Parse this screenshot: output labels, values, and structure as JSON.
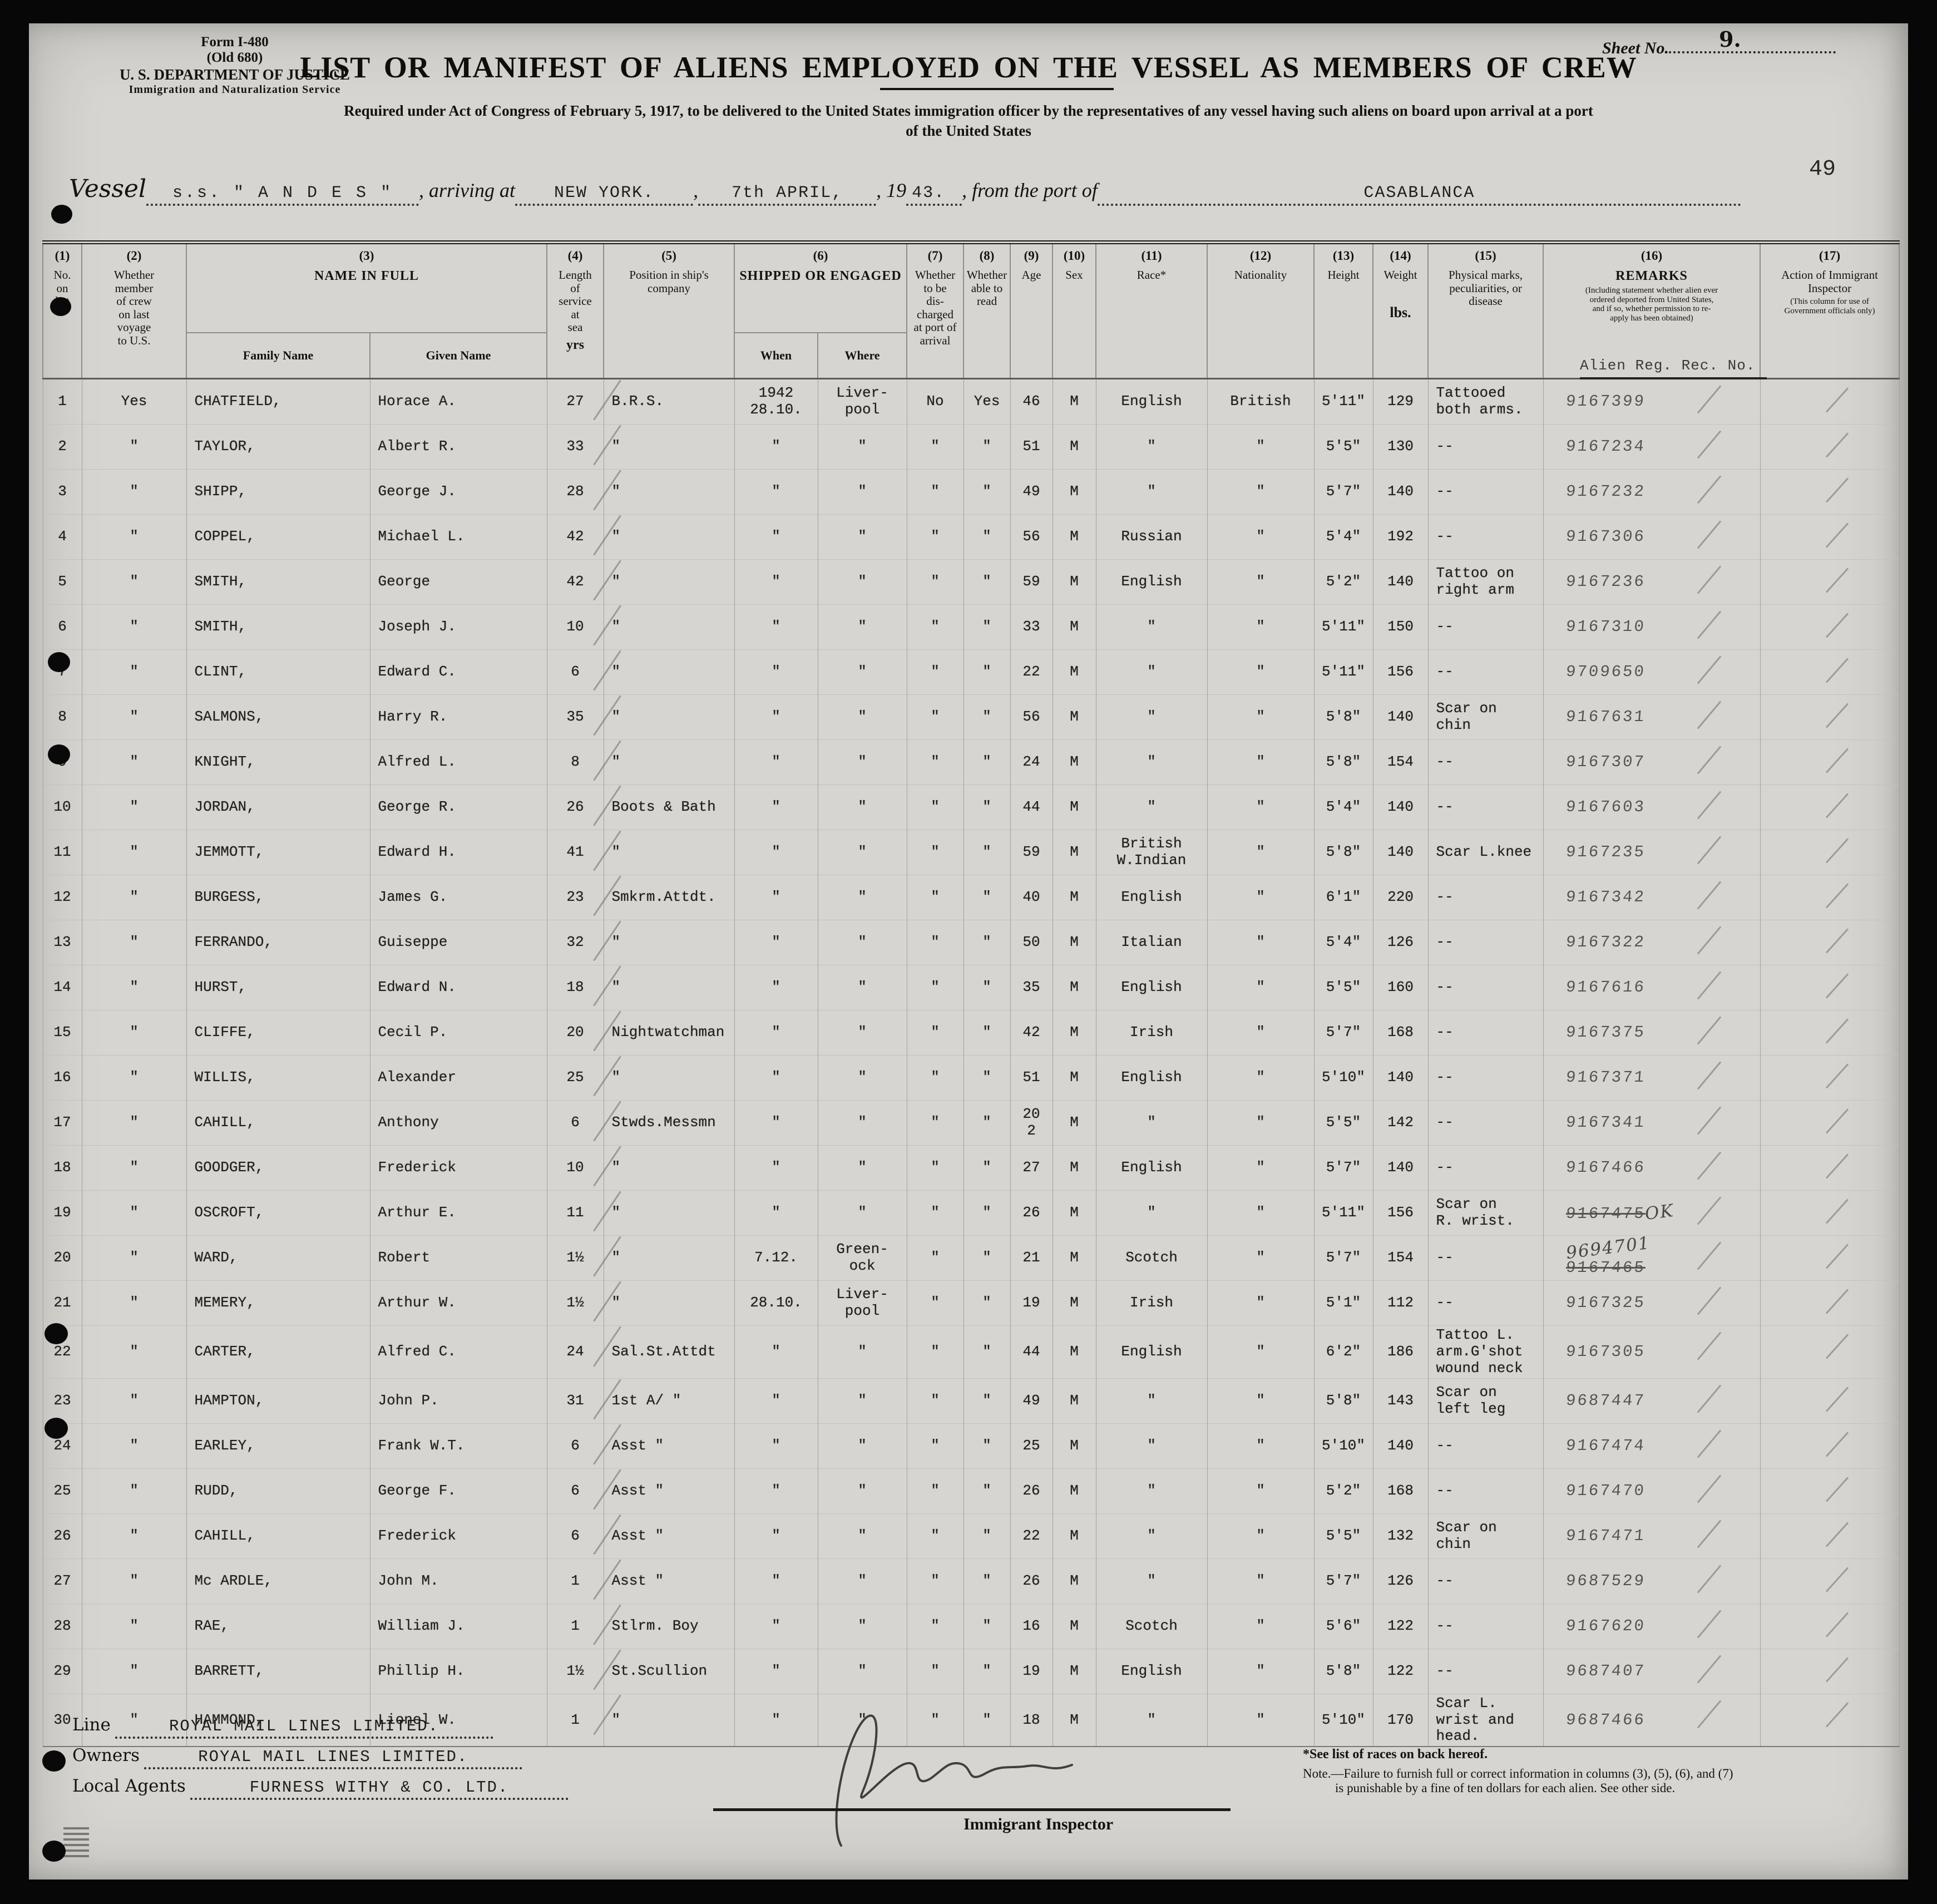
{
  "form": {
    "form_no_1": "Form I-480",
    "form_no_2": "(Old 680)",
    "dept": "U. S. DEPARTMENT OF JUSTICE",
    "service_name": "Immigration and Naturalization Service",
    "sheet_label": "Sheet No.",
    "sheet_value": "9.",
    "title": "LIST OR MANIFEST OF ALIENS EMPLOYED ON THE VESSEL AS MEMBERS OF CREW",
    "subtitle1": "Required under Act of Congress of February 5, 1917, to be delivered to the United States immigration officer by the representatives of any vessel having such aliens on board upon arrival at a port",
    "subtitle2": "of the United States",
    "vessel_label": "Vessel",
    "vessel_value": "s.s. \" A N D E S \"",
    "arriving_label": ", arriving at",
    "arrival_port": "NEW YORK.",
    "comma": ",",
    "arrival_date": "7th APRIL,",
    "year_label": ", 19",
    "year_value": "43.",
    "from_label": ", from the port of",
    "from_port": "CASABLANCA",
    "page_number": "49"
  },
  "table": {
    "headers": {
      "c1_num": "(1)",
      "c1": "No.\non\nlist",
      "c2_num": "(2)",
      "c2": "Whether\nmember\nof crew\non last\nvoyage\nto U.S.",
      "c3_num": "(3)",
      "c3": "NAME IN FULL",
      "c3a": "Family Name",
      "c3b": "Given Name",
      "c4_num": "(4)",
      "c4": "Length\nof\nservice\nat\nsea",
      "c4b": "yrs",
      "c5_num": "(5)",
      "c5": "Position in ship's\ncompany",
      "c6_num": "(6)",
      "c6": "SHIPPED OR ENGAGED",
      "c6a": "When",
      "c6b": "Where",
      "c7_num": "(7)",
      "c7": "Whether\nto be\ndis-\ncharged\nat port of\narrival",
      "c8_num": "(8)",
      "c8": "Whether\nable to\nread",
      "c9_num": "(9)",
      "c9": "Age",
      "c10_num": "(10)",
      "c10": "Sex",
      "c11_num": "(11)",
      "c11": "Race*",
      "c12_num": "(12)",
      "c12": "Nationality",
      "c13_num": "(13)",
      "c13": "Height",
      "c14_num": "(14)",
      "c14": "Weight",
      "c14b": "lbs.",
      "c15_num": "(15)",
      "c15": "Physical marks,\npeculiarities, or\ndisease",
      "c16_num": "(16)",
      "c16": "REMARKS",
      "c16small": "(Including statement whether alien ever\nordered deported from United States,\nand if so, whether permission to re-\napply has been obtained)",
      "c17_num": "(17)",
      "c17": "Action of Immigrant\nInspector",
      "c17small": "(This column for use of\nGovernment officials only)",
      "alien_reg_label": "Alien Reg. Rec. No."
    },
    "rows": [
      {
        "n": "1",
        "crew": "Yes",
        "family": "CHATFIELD,",
        "given": "Horace A.",
        "service": "27",
        "position": "B.R.S.",
        "when": "1942\n28.10.",
        "where": "Liver-\npool",
        "disch": "No",
        "read": "Yes",
        "age": "46",
        "sex": "M",
        "race": "English",
        "nat": "British",
        "height": "5'11\"",
        "weight": "129",
        "marks": "Tattooed\nboth arms.",
        "reg": "9167399",
        "action": ""
      },
      {
        "n": "2",
        "crew": "\"",
        "family": "TAYLOR,",
        "given": "Albert R.",
        "service": "33",
        "position": "\"",
        "when": "\"",
        "where": "\"",
        "disch": "\"",
        "read": "\"",
        "age": "51",
        "sex": "M",
        "race": "\"",
        "nat": "\"",
        "height": "5'5\"",
        "weight": "130",
        "marks": "--",
        "reg": "9167234",
        "action": ""
      },
      {
        "n": "3",
        "crew": "\"",
        "family": "SHIPP,",
        "given": "George J.",
        "service": "28",
        "position": "\"",
        "when": "\"",
        "where": "\"",
        "disch": "\"",
        "read": "\"",
        "age": "49",
        "sex": "M",
        "race": "\"",
        "nat": "\"",
        "height": "5'7\"",
        "weight": "140",
        "marks": "--",
        "reg": "9167232",
        "action": ""
      },
      {
        "n": "4",
        "crew": "\"",
        "family": "COPPEL,",
        "given": "Michael L.",
        "service": "42",
        "position": "\"",
        "when": "\"",
        "where": "\"",
        "disch": "\"",
        "read": "\"",
        "age": "56",
        "sex": "M",
        "race": "Russian",
        "nat": "\"",
        "height": "5'4\"",
        "weight": "192",
        "marks": "--",
        "reg": "9167306",
        "action": ""
      },
      {
        "n": "5",
        "crew": "\"",
        "family": "SMITH,",
        "given": "George",
        "service": "42",
        "position": "\"",
        "when": "\"",
        "where": "\"",
        "disch": "\"",
        "read": "\"",
        "age": "59",
        "sex": "M",
        "race": "English",
        "nat": "\"",
        "height": "5'2\"",
        "weight": "140",
        "marks": "Tattoo on\nright arm",
        "reg": "9167236",
        "action": ""
      },
      {
        "n": "6",
        "crew": "\"",
        "family": "SMITH,",
        "given": "Joseph J.",
        "service": "10",
        "position": "\"",
        "when": "\"",
        "where": "\"",
        "disch": "\"",
        "read": "\"",
        "age": "33",
        "sex": "M",
        "race": "\"",
        "nat": "\"",
        "height": "5'11\"",
        "weight": "150",
        "marks": "--",
        "reg": "9167310",
        "action": ""
      },
      {
        "n": "7",
        "crew": "\"",
        "family": "CLINT,",
        "given": "Edward C.",
        "service": "6",
        "position": "\"",
        "when": "\"",
        "where": "\"",
        "disch": "\"",
        "read": "\"",
        "age": "22",
        "sex": "M",
        "race": "\"",
        "nat": "\"",
        "height": "5'11\"",
        "weight": "156",
        "marks": "--",
        "reg": "9709650",
        "action": ""
      },
      {
        "n": "8",
        "crew": "\"",
        "family": "SALMONS,",
        "given": "Harry R.",
        "service": "35",
        "position": "\"",
        "when": "\"",
        "where": "\"",
        "disch": "\"",
        "read": "\"",
        "age": "56",
        "sex": "M",
        "race": "\"",
        "nat": "\"",
        "height": "5'8\"",
        "weight": "140",
        "marks": "Scar on chin",
        "reg": "9167631",
        "action": ""
      },
      {
        "n": "9",
        "crew": "\"",
        "family": "KNIGHT,",
        "given": "Alfred L.",
        "service": "8",
        "position": "\"",
        "when": "\"",
        "where": "\"",
        "disch": "\"",
        "read": "\"",
        "age": "24",
        "sex": "M",
        "race": "\"",
        "nat": "\"",
        "height": "5'8\"",
        "weight": "154",
        "marks": "--",
        "reg": "9167307",
        "action": ""
      },
      {
        "n": "10",
        "crew": "\"",
        "family": "JORDAN,",
        "given": "George R.",
        "service": "26",
        "position": "Boots & Bath",
        "when": "\"",
        "where": "\"",
        "disch": "\"",
        "read": "\"",
        "age": "44",
        "sex": "M",
        "race": "\"",
        "nat": "\"",
        "height": "5'4\"",
        "weight": "140",
        "marks": "--",
        "reg": "9167603",
        "action": ""
      },
      {
        "n": "11",
        "crew": "\"",
        "family": "JEMMOTT,",
        "given": "Edward H.",
        "service": "41",
        "position": "\"",
        "when": "\"",
        "where": "\"",
        "disch": "\"",
        "read": "\"",
        "age": "59",
        "sex": "M",
        "race": "British\nW.Indian",
        "nat": "\"",
        "height": "5'8\"",
        "weight": "140",
        "marks": "Scar L.knee",
        "reg": "9167235",
        "action": ""
      },
      {
        "n": "12",
        "crew": "\"",
        "family": "BURGESS,",
        "given": "James G.",
        "service": "23",
        "position": "Smkrm.Attdt.",
        "when": "\"",
        "where": "\"",
        "disch": "\"",
        "read": "\"",
        "age": "40",
        "sex": "M",
        "race": "English",
        "nat": "\"",
        "height": "6'1\"",
        "weight": "220",
        "marks": "--",
        "reg": "9167342",
        "action": ""
      },
      {
        "n": "13",
        "crew": "\"",
        "family": "FERRANDO,",
        "given": "Guiseppe",
        "service": "32",
        "position": "\"",
        "when": "\"",
        "where": "\"",
        "disch": "\"",
        "read": "\"",
        "age": "50",
        "sex": "M",
        "race": "Italian",
        "nat": "\"",
        "height": "5'4\"",
        "weight": "126",
        "marks": "--",
        "reg": "9167322",
        "action": ""
      },
      {
        "n": "14",
        "crew": "\"",
        "family": "HURST,",
        "given": "Edward N.",
        "service": "18",
        "position": "\"",
        "when": "\"",
        "where": "\"",
        "disch": "\"",
        "read": "\"",
        "age": "35",
        "sex": "M",
        "race": "English",
        "nat": "\"",
        "height": "5'5\"",
        "weight": "160",
        "marks": "--",
        "reg": "9167616",
        "action": ""
      },
      {
        "n": "15",
        "crew": "\"",
        "family": "CLIFFE,",
        "given": "Cecil P.",
        "service": "20",
        "position": "Nightwatchman",
        "when": "\"",
        "where": "\"",
        "disch": "\"",
        "read": "\"",
        "age": "42",
        "sex": "M",
        "race": "Irish",
        "nat": "\"",
        "height": "5'7\"",
        "weight": "168",
        "marks": "--",
        "reg": "9167375",
        "action": ""
      },
      {
        "n": "16",
        "crew": "\"",
        "family": "WILLIS,",
        "given": "Alexander",
        "service": "25",
        "position": "\"",
        "when": "\"",
        "where": "\"",
        "disch": "\"",
        "read": "\"",
        "age": "51",
        "sex": "M",
        "race": "English",
        "nat": "\"",
        "height": "5'10\"",
        "weight": "140",
        "marks": "--",
        "reg": "9167371",
        "action": ""
      },
      {
        "n": "17",
        "crew": "\"",
        "family": "CAHILL,",
        "given": "Anthony",
        "service": "6",
        "position": "Stwds.Messmn",
        "when": "\"",
        "where": "\"",
        "disch": "\"",
        "read": "\"",
        "age": "20\n2",
        "sex": "M",
        "race": "\"",
        "nat": "\"",
        "height": "5'5\"",
        "weight": "142",
        "marks": "--",
        "reg": "9167341",
        "action": ""
      },
      {
        "n": "18",
        "crew": "\"",
        "family": "GOODGER,",
        "given": "Frederick",
        "service": "10",
        "position": "\"",
        "when": "\"",
        "where": "\"",
        "disch": "\"",
        "read": "\"",
        "age": "27",
        "sex": "M",
        "race": "English",
        "nat": "\"",
        "height": "5'7\"",
        "weight": "140",
        "marks": "--",
        "reg": "9167466",
        "action": ""
      },
      {
        "n": "19",
        "crew": "\"",
        "family": "OSCROFT,",
        "given": "Arthur E.",
        "service": "11",
        "position": "\"",
        "when": "\"",
        "where": "\"",
        "disch": "\"",
        "read": "\"",
        "age": "26",
        "sex": "M",
        "race": "\"",
        "nat": "\"",
        "height": "5'11\"",
        "weight": "156",
        "marks": "Scar on\nR. wrist.",
        "reg": {
          "struck": "9167475",
          "hand": "OK",
          "inline": true
        },
        "action": ""
      },
      {
        "n": "20",
        "crew": "\"",
        "family": "WARD,",
        "given": "Robert",
        "service": "1½",
        "position": "\"",
        "when": "7.12.",
        "where": "Green-\nock",
        "disch": "\"",
        "read": "\"",
        "age": "21",
        "sex": "M",
        "race": "Scotch",
        "nat": "\"",
        "height": "5'7\"",
        "weight": "154",
        "marks": "--",
        "reg": {
          "hand": "9694701",
          "struck": "9167465",
          "inline": false
        },
        "action": ""
      },
      {
        "n": "21",
        "crew": "\"",
        "family": "MEMERY,",
        "given": "Arthur W.",
        "service": "1½",
        "position": "\"",
        "when": "28.10.",
        "where": "Liver-\npool",
        "disch": "\"",
        "read": "\"",
        "age": "19",
        "sex": "M",
        "race": "Irish",
        "nat": "\"",
        "height": "5'1\"",
        "weight": "112",
        "marks": "--",
        "reg": "9167325",
        "action": ""
      },
      {
        "n": "22",
        "crew": "\"",
        "family": "CARTER,",
        "given": "Alfred C.",
        "service": "24",
        "position": "Sal.St.Attdt",
        "when": "\"",
        "where": "\"",
        "disch": "\"",
        "read": "\"",
        "age": "44",
        "sex": "M",
        "race": "English",
        "nat": "\"",
        "height": "6'2\"",
        "weight": "186",
        "marks": "Tattoo L.\narm.G'shot\nwound neck",
        "reg": "9167305",
        "action": ""
      },
      {
        "n": "23",
        "crew": "\"",
        "family": "HAMPTON,",
        "given": "John P.",
        "service": "31",
        "position": "1st A/   \"",
        "when": "\"",
        "where": "\"",
        "disch": "\"",
        "read": "\"",
        "age": "49",
        "sex": "M",
        "race": "\"",
        "nat": "\"",
        "height": "5'8\"",
        "weight": "143",
        "marks": "Scar on\nleft leg",
        "reg": "9687447",
        "action": ""
      },
      {
        "n": "24",
        "crew": "\"",
        "family": "EARLEY,",
        "given": "Frank W.T.",
        "service": "6",
        "position": "Asst    \"",
        "when": "\"",
        "where": "\"",
        "disch": "\"",
        "read": "\"",
        "age": "25",
        "sex": "M",
        "race": "\"",
        "nat": "\"",
        "height": "5'10\"",
        "weight": "140",
        "marks": "--",
        "reg": "9167474",
        "action": ""
      },
      {
        "n": "25",
        "crew": "\"",
        "family": "RUDD,",
        "given": "George F.",
        "service": "6",
        "position": "Asst    \"",
        "when": "\"",
        "where": "\"",
        "disch": "\"",
        "read": "\"",
        "age": "26",
        "sex": "M",
        "race": "\"",
        "nat": "\"",
        "height": "5'2\"",
        "weight": "168",
        "marks": "--",
        "reg": "9167470",
        "action": ""
      },
      {
        "n": "26",
        "crew": "\"",
        "family": "CAHILL,",
        "given": "Frederick",
        "service": "6",
        "position": "Asst    \"",
        "when": "\"",
        "where": "\"",
        "disch": "\"",
        "read": "\"",
        "age": "22",
        "sex": "M",
        "race": "\"",
        "nat": "\"",
        "height": "5'5\"",
        "weight": "132",
        "marks": "Scar on chin",
        "reg": "9167471",
        "action": ""
      },
      {
        "n": "27",
        "crew": "\"",
        "family": "Mc ARDLE,",
        "given": "John M.",
        "service": "1",
        "position": "Asst    \"",
        "when": "\"",
        "where": "\"",
        "disch": "\"",
        "read": "\"",
        "age": "26",
        "sex": "M",
        "race": "\"",
        "nat": "\"",
        "height": "5'7\"",
        "weight": "126",
        "marks": "--",
        "reg": "9687529",
        "action": ""
      },
      {
        "n": "28",
        "crew": "\"",
        "family": "RAE,",
        "given": "William J.",
        "service": "1",
        "position": "Stlrm. Boy",
        "when": "\"",
        "where": "\"",
        "disch": "\"",
        "read": "\"",
        "age": "16",
        "sex": "M",
        "race": "Scotch",
        "nat": "\"",
        "height": "5'6\"",
        "weight": "122",
        "marks": "--",
        "reg": "9167620",
        "action": ""
      },
      {
        "n": "29",
        "crew": "\"",
        "family": "BARRETT,",
        "given": "Phillip H.",
        "service": "1½",
        "position": "St.Scullion",
        "when": "\"",
        "where": "\"",
        "disch": "\"",
        "read": "\"",
        "age": "19",
        "sex": "M",
        "race": "English",
        "nat": "\"",
        "height": "5'8\"",
        "weight": "122",
        "marks": "--",
        "reg": "9687407",
        "action": ""
      },
      {
        "n": "30",
        "crew": "\"",
        "family": "HAMMOND,",
        "given": "Lionel W.",
        "service": "1",
        "position": "\"",
        "when": "\"",
        "where": "\"",
        "disch": "\"",
        "read": "\"",
        "age": "18",
        "sex": "M",
        "race": "\"",
        "nat": "\"",
        "height": "5'10\"",
        "weight": "170",
        "marks": "Scar L.\nwrist and\nhead.",
        "reg": "9687466",
        "action": ""
      }
    ]
  },
  "footer": {
    "line_label": "Line",
    "line_value": "ROYAL MAIL LINES LIMITED.",
    "owners_label": "Owners",
    "owners_value": "ROYAL MAIL LINES LIMITED.",
    "agents_label": "Local Agents",
    "agents_value": "FURNESS WITHY & CO. LTD.",
    "inspector_label": "Immigrant Inspector",
    "note1": "*See list of races on back hereof.",
    "note2": "Note.—Failure to furnish full or correct information in columns (3), (5), (6), and (7)",
    "note3": "is punishable by a fine of ten dollars for each alien.  See other side."
  }
}
